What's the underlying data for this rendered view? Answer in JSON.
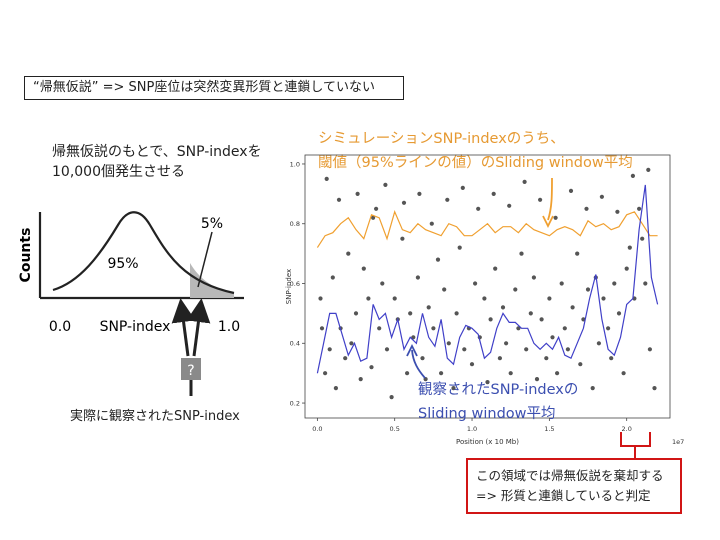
{
  "title_box": "“帰無仮説” => SNP座位は突然変異形質と連鎖していない",
  "null_hypothesis": {
    "line1": "帰無仮説のもとで、SNP-indexを",
    "line2": "10,000個発生させる"
  },
  "distribution": {
    "ylabel": "Counts",
    "xlabel": "SNP-index",
    "x_min_label": "0.0",
    "x_max_label": "1.0",
    "center_label": "95%",
    "tail_label": "5%",
    "question_mark": "?",
    "observed_caption": "実際に観察されたSNP-index",
    "colors": {
      "tail_fill": "#b8b8b8",
      "curve": "#222222"
    }
  },
  "orange_note": {
    "line1": "シミュレーションSNP-indexのうち、",
    "line2": "閾値（95%ラインの値）のSliding window平均"
  },
  "blue_note": {
    "line1": "観察されたSNP-indexの",
    "line2": "Sliding window平均"
  },
  "reject_box": {
    "line1": "この領域では帰無仮説を棄却する",
    "line2": "=> 形質と連鎖していると判定"
  },
  "colors": {
    "orange": "#f0a030",
    "blue": "#4040c8",
    "red": "#d11515",
    "points": "#555555"
  },
  "chart_data": {
    "type": "scatter",
    "xlabel": "Position (x 10 Mb)",
    "ylabel": "SNP-index",
    "x_exponent_label": "1e7",
    "xlim": [
      -0.08,
      2.28
    ],
    "ylim": [
      0.15,
      1.03
    ],
    "xticks": [
      "0.0",
      "0.5",
      "1.0",
      "1.5",
      "2.0"
    ],
    "xtick_values": [
      0.0,
      0.5,
      1.0,
      1.5,
      2.0
    ],
    "yticks": [
      "0.2",
      "0.4",
      "0.6",
      "0.8",
      "1.0"
    ],
    "ytick_values": [
      0.2,
      0.4,
      0.6,
      0.8,
      1.0
    ],
    "series": [
      {
        "kind": "line",
        "color": "#f0a030",
        "x": [
          0.0,
          0.05,
          0.1,
          0.15,
          0.2,
          0.25,
          0.3,
          0.35,
          0.4,
          0.45,
          0.5,
          0.55,
          0.6,
          0.65,
          0.7,
          0.75,
          0.8,
          0.85,
          0.9,
          0.95,
          1.0,
          1.05,
          1.1,
          1.15,
          1.2,
          1.25,
          1.3,
          1.35,
          1.4,
          1.45,
          1.5,
          1.55,
          1.6,
          1.65,
          1.7,
          1.75,
          1.8,
          1.85,
          1.9,
          1.95,
          2.0,
          2.05,
          2.1,
          2.15,
          2.2
        ],
        "y": [
          0.72,
          0.76,
          0.77,
          0.8,
          0.82,
          0.78,
          0.75,
          0.83,
          0.82,
          0.75,
          0.84,
          0.78,
          0.77,
          0.8,
          0.78,
          0.77,
          0.76,
          0.8,
          0.79,
          0.76,
          0.76,
          0.78,
          0.8,
          0.77,
          0.79,
          0.79,
          0.77,
          0.8,
          0.78,
          0.77,
          0.76,
          0.78,
          0.79,
          0.78,
          0.76,
          0.81,
          0.79,
          0.8,
          0.78,
          0.79,
          0.83,
          0.84,
          0.8,
          0.76,
          0.76
        ]
      },
      {
        "kind": "line",
        "color": "#4040c8",
        "x": [
          0.0,
          0.04,
          0.08,
          0.12,
          0.16,
          0.2,
          0.24,
          0.28,
          0.32,
          0.36,
          0.4,
          0.44,
          0.48,
          0.52,
          0.56,
          0.6,
          0.64,
          0.68,
          0.72,
          0.76,
          0.8,
          0.84,
          0.88,
          0.92,
          0.96,
          1.0,
          1.04,
          1.08,
          1.12,
          1.16,
          1.2,
          1.24,
          1.28,
          1.32,
          1.36,
          1.4,
          1.44,
          1.48,
          1.52,
          1.56,
          1.6,
          1.64,
          1.68,
          1.72,
          1.76,
          1.8,
          1.84,
          1.88,
          1.92,
          1.96,
          2.0,
          2.04,
          2.08,
          2.12,
          2.16,
          2.2
        ],
        "y": [
          0.3,
          0.4,
          0.5,
          0.5,
          0.43,
          0.36,
          0.4,
          0.34,
          0.35,
          0.53,
          0.48,
          0.5,
          0.42,
          0.48,
          0.38,
          0.42,
          0.4,
          0.5,
          0.42,
          0.39,
          0.48,
          0.35,
          0.33,
          0.42,
          0.46,
          0.45,
          0.43,
          0.35,
          0.37,
          0.45,
          0.5,
          0.47,
          0.47,
          0.45,
          0.45,
          0.4,
          0.38,
          0.4,
          0.38,
          0.42,
          0.36,
          0.35,
          0.4,
          0.45,
          0.55,
          0.63,
          0.48,
          0.38,
          0.36,
          0.42,
          0.53,
          0.55,
          0.78,
          0.93,
          0.62,
          0.53
        ]
      },
      {
        "kind": "points",
        "color": "#555555",
        "x": [
          0.02,
          0.03,
          0.05,
          0.08,
          0.1,
          0.12,
          0.15,
          0.18,
          0.2,
          0.22,
          0.25,
          0.28,
          0.3,
          0.33,
          0.35,
          0.38,
          0.4,
          0.42,
          0.45,
          0.48,
          0.5,
          0.52,
          0.55,
          0.58,
          0.6,
          0.62,
          0.65,
          0.68,
          0.7,
          0.72,
          0.75,
          0.78,
          0.8,
          0.82,
          0.85,
          0.88,
          0.9,
          0.92,
          0.95,
          0.98,
          1.0,
          1.02,
          1.05,
          1.08,
          1.1,
          1.12,
          1.15,
          1.18,
          1.2,
          1.22,
          1.25,
          1.28,
          1.3,
          1.32,
          1.35,
          1.38,
          1.4,
          1.42,
          1.45,
          1.48,
          1.5,
          1.52,
          1.55,
          1.58,
          1.6,
          1.62,
          1.65,
          1.68,
          1.7,
          1.72,
          1.75,
          1.78,
          1.8,
          1.82,
          1.85,
          1.88,
          1.9,
          1.92,
          1.95,
          1.98,
          2.0,
          2.02,
          2.05,
          2.08,
          2.1,
          2.12,
          2.15,
          2.18,
          0.06,
          0.14,
          0.26,
          0.36,
          0.44,
          0.56,
          0.66,
          0.74,
          0.84,
          0.94,
          1.04,
          1.14,
          1.24,
          1.34,
          1.44,
          1.54,
          1.64,
          1.74,
          1.84,
          1.94,
          2.04,
          2.14
        ],
        "y": [
          0.55,
          0.45,
          0.3,
          0.38,
          0.62,
          0.25,
          0.45,
          0.35,
          0.7,
          0.4,
          0.5,
          0.28,
          0.65,
          0.55,
          0.32,
          0.85,
          0.45,
          0.6,
          0.38,
          0.22,
          0.55,
          0.48,
          0.75,
          0.3,
          0.5,
          0.42,
          0.62,
          0.35,
          0.28,
          0.52,
          0.45,
          0.68,
          0.3,
          0.58,
          0.4,
          0.25,
          0.5,
          0.72,
          0.38,
          0.45,
          0.33,
          0.6,
          0.42,
          0.55,
          0.27,
          0.48,
          0.65,
          0.35,
          0.52,
          0.4,
          0.3,
          0.58,
          0.45,
          0.7,
          0.38,
          0.5,
          0.62,
          0.28,
          0.48,
          0.35,
          0.55,
          0.42,
          0.3,
          0.6,
          0.45,
          0.38,
          0.52,
          0.7,
          0.33,
          0.48,
          0.58,
          0.25,
          0.62,
          0.4,
          0.55,
          0.45,
          0.35,
          0.6,
          0.5,
          0.3,
          0.65,
          0.72,
          0.55,
          0.85,
          0.75,
          0.6,
          0.38,
          0.25,
          0.95,
          0.88,
          0.9,
          0.82,
          0.93,
          0.87,
          0.9,
          0.8,
          0.88,
          0.92,
          0.85,
          0.9,
          0.86,
          0.94,
          0.88,
          0.82,
          0.91,
          0.85,
          0.89,
          0.84,
          0.96,
          0.98
        ]
      }
    ]
  }
}
